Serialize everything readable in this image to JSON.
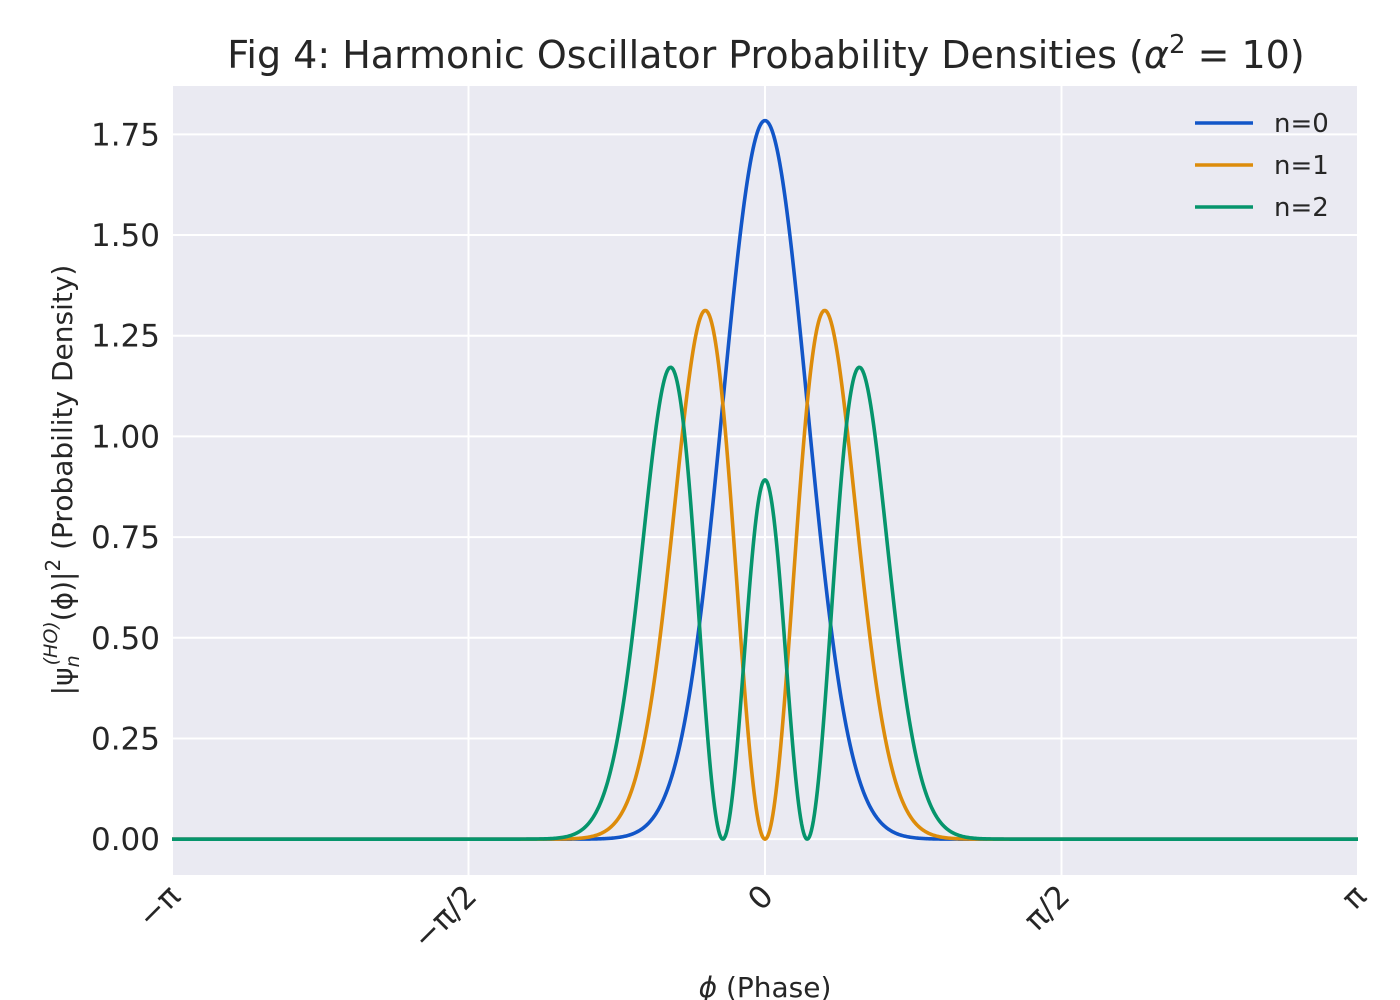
{
  "chart_data": {
    "type": "line",
    "title_prefix": "Fig 4: Harmonic Oscillator Probability Densities (",
    "title_math": "α",
    "title_sup": "2",
    "title_suffix": " = 10)",
    "xlabel_symbol": "ϕ",
    "xlabel_text": " (Phase)",
    "ylabel_pre": "|ψ",
    "ylabel_sub": "n",
    "ylabel_sup": "(HO)",
    "ylabel_mid": "(ϕ)|",
    "ylabel_sq": "2",
    "ylabel_post": " (Probability Density)",
    "alpha_squared": 10,
    "xlim": [
      -3.14159,
      3.14159
    ],
    "ylim": [
      -0.089,
      1.87
    ],
    "x_ticks": [
      {
        "value": -3.14159,
        "label": "−π"
      },
      {
        "value": -1.5708,
        "label": "−π/2"
      },
      {
        "value": 0,
        "label": "0"
      },
      {
        "value": 1.5708,
        "label": "π/2"
      },
      {
        "value": 3.14159,
        "label": "π"
      }
    ],
    "y_ticks": [
      {
        "value": 0.0,
        "label": "0.00"
      },
      {
        "value": 0.25,
        "label": "0.25"
      },
      {
        "value": 0.5,
        "label": "0.50"
      },
      {
        "value": 0.75,
        "label": "0.75"
      },
      {
        "value": 1.0,
        "label": "1.00"
      },
      {
        "value": 1.25,
        "label": "1.25"
      },
      {
        "value": 1.5,
        "label": "1.50"
      },
      {
        "value": 1.75,
        "label": "1.75"
      }
    ],
    "series": [
      {
        "name": "n=0",
        "n": 0,
        "color": "#1256c8",
        "peak_value": 1.784,
        "peak_at": [
          0.0
        ]
      },
      {
        "name": "n=1",
        "n": 1,
        "color": "#dd8c0b",
        "peak_value": 1.312,
        "peak_at": [
          -0.316,
          0.316
        ]
      },
      {
        "name": "n=2",
        "n": 2,
        "color": "#06956c",
        "peak_value": 1.17,
        "peak_at": [
          -0.51,
          0.51
        ]
      }
    ],
    "grid": true,
    "legend_position": "top-right",
    "background": "#eaeaf2",
    "grid_color": "#ffffff"
  }
}
